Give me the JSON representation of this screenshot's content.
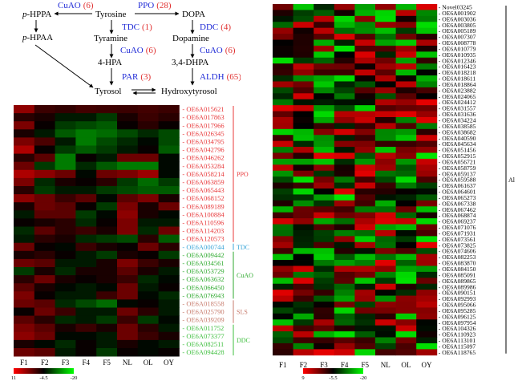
{
  "pathway": {
    "nodes": [
      {
        "id": "tyrosine",
        "label": "Tyrosine",
        "italic_prefix": ""
      },
      {
        "id": "dopa",
        "label": "DOPA",
        "italic_prefix": ""
      },
      {
        "id": "phppa",
        "label": "-HPPA",
        "italic_prefix": "p"
      },
      {
        "id": "phpaa",
        "label": "-HPAA",
        "italic_prefix": "p"
      },
      {
        "id": "tyramine",
        "label": "Tyramine",
        "italic_prefix": ""
      },
      {
        "id": "dopamine",
        "label": "Dopamine",
        "italic_prefix": ""
      },
      {
        "id": "hpa",
        "label": "4-HPA",
        "italic_prefix": ""
      },
      {
        "id": "dhpa",
        "label": "3,4-DHPA",
        "italic_prefix": ""
      },
      {
        "id": "tyrosol",
        "label": "Tyrosol",
        "italic_prefix": ""
      },
      {
        "id": "hydroxytyrosol",
        "label": "Hydroxytyrosol",
        "italic_prefix": ""
      }
    ],
    "enzymes": [
      {
        "id": "cuao_top",
        "name": "CuAO",
        "count": "(6)"
      },
      {
        "id": "ppo",
        "name": "PPO",
        "count": "(28)"
      },
      {
        "id": "tdc",
        "name": "TDC",
        "count": "(1)"
      },
      {
        "id": "ddc",
        "name": "DDC",
        "count": "(4)"
      },
      {
        "id": "cuao_left",
        "name": "CuAO",
        "count": "(6)"
      },
      {
        "id": "cuao_right",
        "name": "CuAO",
        "count": "(6)"
      },
      {
        "id": "par",
        "name": "PAR",
        "count": "(3)"
      },
      {
        "id": "aldh",
        "name": "ALDH",
        "count": "(65)"
      }
    ]
  },
  "colors": {
    "enzyme_name": "#1f2ad6",
    "enzyme_count": "#e03030",
    "ppo": "#e8383a",
    "tdc": "#3aa6d8",
    "cuao": "#2faa2f",
    "sls": "#c77b6c",
    "ddc": "#3fbf3f",
    "al": "#000000"
  },
  "columns": [
    "F1",
    "F2",
    "F3",
    "F4",
    "F5",
    "NL",
    "OL",
    "OY"
  ],
  "left_heatmap": {
    "genes": [
      {
        "id": "OE6A015621",
        "group": "ppo"
      },
      {
        "id": "OE6A017863",
        "group": "ppo"
      },
      {
        "id": "OE6A017966",
        "group": "ppo"
      },
      {
        "id": "OE6A026345",
        "group": "ppo"
      },
      {
        "id": "OE6A034795",
        "group": "ppo"
      },
      {
        "id": "OE6A042796",
        "group": "ppo"
      },
      {
        "id": "OE6A046262",
        "group": "ppo"
      },
      {
        "id": "OE6A053284",
        "group": "ppo"
      },
      {
        "id": "OE6A058214",
        "group": "ppo"
      },
      {
        "id": "OE6A063859",
        "group": "ppo"
      },
      {
        "id": "OE6A065443",
        "group": "ppo"
      },
      {
        "id": "OE6A068152",
        "group": "ppo"
      },
      {
        "id": "OE6A089189",
        "group": "ppo"
      },
      {
        "id": "OE6A100884",
        "group": "ppo"
      },
      {
        "id": "OE6A110596",
        "group": "ppo"
      },
      {
        "id": "OE6A114203",
        "group": "ppo"
      },
      {
        "id": "OE6A120573",
        "group": "ppo"
      },
      {
        "id": "OE6A000744",
        "group": "tdc"
      },
      {
        "id": "OE6A009442",
        "group": "cuao"
      },
      {
        "id": "OE6A034561",
        "group": "cuao"
      },
      {
        "id": "OE6A053729",
        "group": "cuao"
      },
      {
        "id": "OE6A063632",
        "group": "cuao"
      },
      {
        "id": "OE6A066450",
        "group": "cuao"
      },
      {
        "id": "OE6A076943",
        "group": "cuao"
      },
      {
        "id": "OE6A018558",
        "group": "sls"
      },
      {
        "id": "OE6A025790",
        "group": "sls"
      },
      {
        "id": "OE6A039209",
        "group": "sls"
      },
      {
        "id": "OE6A011752",
        "group": "ddc"
      },
      {
        "id": "OE6A073377",
        "group": "ddc"
      },
      {
        "id": "OE6A082511",
        "group": "ddc"
      },
      {
        "id": "OE6A094428",
        "group": "ddc"
      }
    ],
    "groups": [
      {
        "id": "ppo",
        "label": "PPO"
      },
      {
        "id": "tdc",
        "label": "TDC"
      },
      {
        "id": "cuao",
        "label": "CuAO"
      },
      {
        "id": "sls",
        "label": "SLS"
      },
      {
        "id": "ddc",
        "label": "DDC"
      }
    ],
    "values": [
      [
        4.2,
        -1,
        -1.5,
        -0.5,
        -0.8,
        -1,
        -0.5,
        -1
      ],
      [
        -2,
        -3,
        -6,
        -6,
        -8,
        -3,
        -1,
        -2
      ],
      [
        3,
        -4,
        -8,
        -9,
        -10,
        -4,
        -2,
        -4
      ],
      [
        -3,
        -6,
        -10,
        -12,
        -11,
        -9,
        -7,
        -9
      ],
      [
        3,
        0,
        -6,
        -12,
        -9,
        -7,
        -5,
        -9
      ],
      [
        6,
        -4,
        -8,
        -10,
        -8,
        -6,
        -4,
        -10
      ],
      [
        -2,
        1,
        -12,
        -4,
        -6,
        2,
        2,
        -5
      ],
      [
        2,
        -8,
        -12,
        -7,
        -10,
        -12,
        -12,
        -5
      ],
      [
        6,
        4,
        2,
        -5,
        2,
        3,
        5,
        -5
      ],
      [
        3,
        -7,
        -3,
        -4,
        -2,
        -8,
        -11,
        -8
      ],
      [
        -2,
        -8,
        -6,
        -6,
        -8,
        -9,
        -10,
        -10
      ],
      [
        4,
        2,
        -1,
        1,
        -5,
        1,
        3,
        -3
      ],
      [
        -3,
        2,
        1,
        -4,
        -8,
        3,
        -3,
        2
      ],
      [
        -6,
        1,
        1,
        -8,
        -5,
        4,
        -3,
        -5
      ],
      [
        -4,
        -3,
        -2,
        -7,
        -4,
        3,
        -6,
        -6
      ],
      [
        -7,
        1,
        -2,
        -1,
        -3,
        3,
        -7,
        2
      ],
      [
        -6,
        -2,
        -3,
        -7,
        -8,
        -9,
        -2,
        -10
      ],
      [
        2,
        -4,
        -5,
        -1,
        -3,
        -4,
        2,
        -2
      ],
      [
        -3,
        -2,
        -4,
        -6,
        -8,
        -3,
        -4,
        -8
      ],
      [
        2,
        1,
        -6,
        -6,
        -3,
        3,
        -1,
        -3
      ],
      [
        -8,
        -3,
        -7,
        -3,
        -3,
        1,
        -3,
        -6
      ],
      [
        -2,
        2,
        -3,
        -4,
        -3,
        -1,
        -7,
        -5
      ],
      [
        1,
        -3,
        -5,
        -6,
        -5,
        2,
        -6,
        -4
      ],
      [
        3,
        -4,
        -6,
        -6,
        -1,
        2,
        -5,
        -7
      ],
      [
        2,
        1,
        -7,
        -9,
        -11,
        -5,
        -4,
        -6
      ],
      [
        -4,
        2,
        -1,
        -6,
        -6,
        2,
        -2,
        -6
      ],
      [
        1,
        -2,
        -7,
        -6,
        -8,
        -1,
        -8,
        -5
      ],
      [
        3,
        1,
        -3,
        -1,
        -3,
        2,
        -2,
        -6
      ],
      [
        4,
        2,
        -5,
        -5,
        -6,
        2,
        -1,
        -3
      ],
      [
        -3,
        -5,
        -7,
        -4,
        -6,
        -3,
        -5,
        -6
      ],
      [
        2,
        1,
        -6,
        -4,
        -8,
        -4,
        -5,
        -4
      ]
    ],
    "legend": {
      "ticks": [
        "11",
        "-4.5",
        "-20"
      ]
    },
    "scale": {
      "max": 11,
      "mid": -4.5,
      "min": -20
    }
  },
  "right_heatmap": {
    "genes": [
      "Novel03245",
      "OE6A001902",
      "OE6A003036",
      "OE6A003805",
      "OE6A005189",
      "OE6A007307",
      "OE6A008778",
      "OE6A010779",
      "OE6A010935",
      "OE6A012346",
      "OE6A016423",
      "OE6A018218",
      "OE6A018611",
      "OE6A018864",
      "OE6A023882",
      "OE6A024065",
      "OE6A024412",
      "OE6A031557",
      "OE6A031636",
      "OE6A034224",
      "OE6A038585",
      "OE6A038682",
      "OE6A040590",
      "OE6A045634",
      "OE6A051456",
      "OE6A052915",
      "OE6A056721",
      "OE6A058759",
      "OE6A059137",
      "OE6A059588",
      "OE6A061637",
      "OE6A064601",
      "OE6A065273",
      "OE6A067338",
      "OE6A067462",
      "OE6A068874",
      "OE6A069237",
      "OE6A071076",
      "OE6A071931",
      "OE6A073561",
      "OE6A073825",
      "OE6A074606",
      "OE6A082253",
      "OE6A083870",
      "OE6A084150",
      "OE6A085091",
      "OE6A089865",
      "OE6A089986",
      "OE6A090151",
      "OE6A092993",
      "OE6A095066",
      "OE6A095285",
      "OE6A096125",
      "OE6A097954",
      "OE6A104326",
      "OE6A110923",
      "OE6A113101",
      "OE6A115097",
      "OE6A118765"
    ],
    "group_label": "Al",
    "legend": {
      "ticks": [
        "9",
        "-5.5",
        "-20"
      ]
    },
    "scale": {
      "max": 9,
      "mid": -5.5,
      "min": -20
    }
  }
}
